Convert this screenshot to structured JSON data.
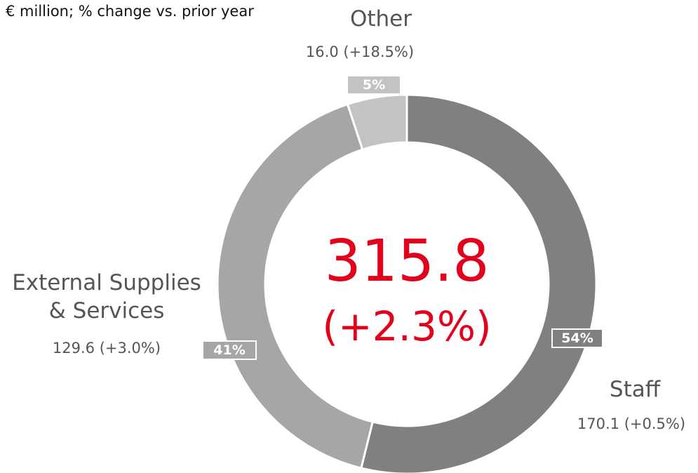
{
  "chart_data": {
    "type": "pie",
    "donut": true,
    "subtitle": "€ million; % change vs. prior year",
    "categories": [
      "Staff",
      "External Supplies & Services",
      "Other"
    ],
    "values": [
      170.1,
      129.6,
      16.0
    ],
    "value_labels": [
      "170.1 (+0.5%)",
      "129.6 (+3.0%)",
      "16.0 (+18.5%)"
    ],
    "percentages": [
      54,
      41,
      5
    ],
    "percent_labels": [
      "54%",
      "41%",
      "5%"
    ],
    "colors": [
      "#808080",
      "#a6a6a6",
      "#c3c3c3"
    ],
    "total": 315.8,
    "total_change": "(+2.3%)",
    "total_color": "#e2001a"
  }
}
